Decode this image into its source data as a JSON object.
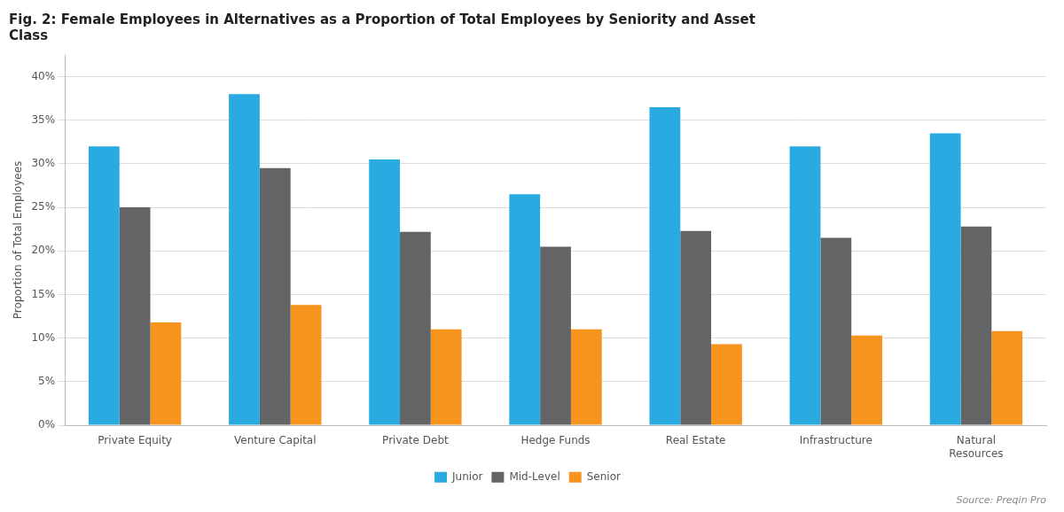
{
  "chart_data": {
    "type": "bar",
    "title": "Fig. 2: Female Employees in Alternatives as a Proportion of Total Employees by Seniority and Asset\nClass",
    "ylabel": "Proportion of Total Employees",
    "annotations": [
      "Source: Preqin Pro"
    ],
    "categories": [
      "Private Equity",
      "Venture Capital",
      "Private Debt",
      "Hedge Funds",
      "Real Estate",
      "Infrastructure",
      "Natural\nResources"
    ],
    "series": [
      {
        "name": "Junior",
        "color": "#29ABE2",
        "values": [
          0.32,
          0.38,
          0.305,
          0.265,
          0.365,
          0.32,
          0.335
        ]
      },
      {
        "name": "Mid-Level",
        "color": "#636466",
        "values": [
          0.25,
          0.295,
          0.222,
          0.205,
          0.223,
          0.215,
          0.228
        ]
      },
      {
        "name": "Senior",
        "color": "#F7941D",
        "values": [
          0.118,
          0.138,
          0.11,
          0.11,
          0.093,
          0.103,
          0.108
        ]
      }
    ],
    "ylim": [
      0,
      0.425
    ],
    "yticks": [
      {
        "value": 0.0,
        "label": "0%"
      },
      {
        "value": 0.05,
        "label": "5%"
      },
      {
        "value": 0.1,
        "label": "10%"
      },
      {
        "value": 0.15,
        "label": "15%"
      },
      {
        "value": 0.2,
        "label": "20%"
      },
      {
        "value": 0.25,
        "label": "25%"
      },
      {
        "value": 0.3,
        "label": "30%"
      },
      {
        "value": 0.35,
        "label": "35%"
      },
      {
        "value": 0.4,
        "label": "40%"
      }
    ],
    "grid": true,
    "legend": "bottom"
  }
}
